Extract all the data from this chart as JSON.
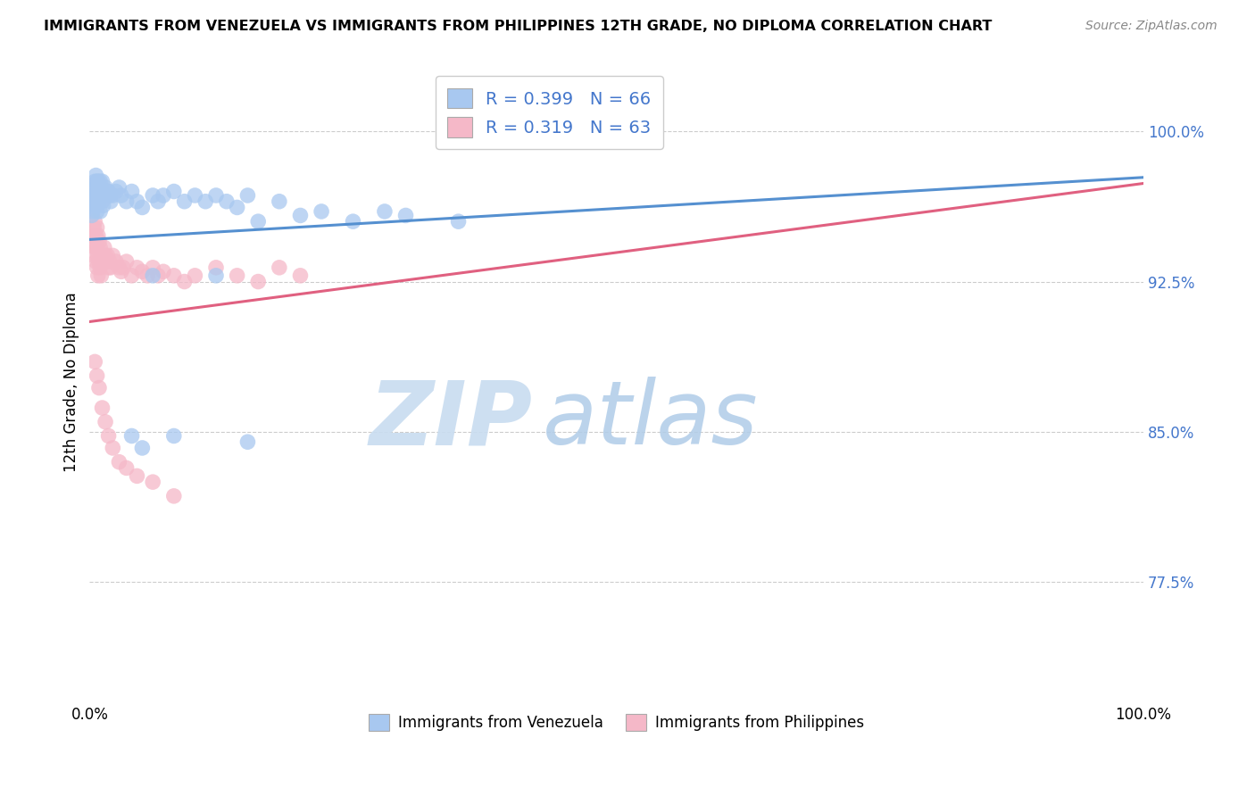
{
  "title": "IMMIGRANTS FROM VENEZUELA VS IMMIGRANTS FROM PHILIPPINES 12TH GRADE, NO DIPLOMA CORRELATION CHART",
  "source": "Source: ZipAtlas.com",
  "ylabel": "12th Grade, No Diploma",
  "yticks": [
    "100.0%",
    "92.5%",
    "85.0%",
    "77.5%"
  ],
  "ytick_vals": [
    1.0,
    0.925,
    0.85,
    0.775
  ],
  "xlim": [
    0.0,
    1.0
  ],
  "ylim": [
    0.715,
    1.035
  ],
  "legend_label1": "Immigrants from Venezuela",
  "legend_label2": "Immigrants from Philippines",
  "R1": "0.399",
  "N1": "66",
  "R2": "0.319",
  "N2": "63",
  "color1": "#A8C8F0",
  "color2": "#F5B8C8",
  "color1_dark": "#5590D0",
  "color2_dark": "#E06080",
  "blue_text": "#4477CC",
  "watermark_zip_color": "#C8DCF0",
  "watermark_atlas_color": "#B0CCE8",
  "trend1_y0": 0.946,
  "trend1_y1": 0.977,
  "trend2_y0": 0.905,
  "trend2_y1": 0.974,
  "venezuela_x": [
    0.002,
    0.003,
    0.003,
    0.004,
    0.004,
    0.005,
    0.005,
    0.005,
    0.006,
    0.006,
    0.006,
    0.007,
    0.007,
    0.007,
    0.008,
    0.008,
    0.009,
    0.009,
    0.01,
    0.01,
    0.01,
    0.011,
    0.012,
    0.012,
    0.013,
    0.013,
    0.014,
    0.015,
    0.016,
    0.017,
    0.018,
    0.019,
    0.02,
    0.022,
    0.025,
    0.028,
    0.03,
    0.035,
    0.04,
    0.045,
    0.05,
    0.06,
    0.065,
    0.07,
    0.08,
    0.09,
    0.1,
    0.11,
    0.12,
    0.13,
    0.14,
    0.15,
    0.16,
    0.18,
    0.2,
    0.22,
    0.25,
    0.28,
    0.3,
    0.35,
    0.04,
    0.05,
    0.06,
    0.08,
    0.12,
    0.15
  ],
  "venezuela_y": [
    0.958,
    0.96,
    0.968,
    0.965,
    0.972,
    0.975,
    0.97,
    0.963,
    0.978,
    0.972,
    0.965,
    0.975,
    0.968,
    0.96,
    0.975,
    0.968,
    0.972,
    0.965,
    0.975,
    0.968,
    0.96,
    0.97,
    0.975,
    0.965,
    0.97,
    0.963,
    0.968,
    0.972,
    0.968,
    0.97,
    0.97,
    0.968,
    0.965,
    0.968,
    0.97,
    0.972,
    0.968,
    0.965,
    0.97,
    0.965,
    0.962,
    0.968,
    0.965,
    0.968,
    0.97,
    0.965,
    0.968,
    0.965,
    0.968,
    0.965,
    0.962,
    0.968,
    0.955,
    0.965,
    0.958,
    0.96,
    0.955,
    0.96,
    0.958,
    0.955,
    0.848,
    0.842,
    0.928,
    0.848,
    0.928,
    0.845
  ],
  "philippines_x": [
    0.002,
    0.003,
    0.004,
    0.004,
    0.005,
    0.005,
    0.006,
    0.006,
    0.007,
    0.007,
    0.007,
    0.008,
    0.008,
    0.008,
    0.009,
    0.009,
    0.01,
    0.01,
    0.011,
    0.011,
    0.012,
    0.013,
    0.014,
    0.015,
    0.016,
    0.017,
    0.018,
    0.019,
    0.02,
    0.022,
    0.025,
    0.028,
    0.03,
    0.032,
    0.035,
    0.04,
    0.045,
    0.05,
    0.055,
    0.06,
    0.065,
    0.07,
    0.08,
    0.09,
    0.1,
    0.12,
    0.14,
    0.16,
    0.18,
    0.2,
    0.005,
    0.007,
    0.009,
    0.012,
    0.015,
    0.018,
    0.022,
    0.028,
    0.035,
    0.045,
    0.06,
    0.08,
    0.5
  ],
  "philippines_y": [
    0.948,
    0.945,
    0.952,
    0.938,
    0.955,
    0.942,
    0.948,
    0.935,
    0.952,
    0.942,
    0.932,
    0.948,
    0.938,
    0.928,
    0.945,
    0.935,
    0.942,
    0.932,
    0.938,
    0.928,
    0.938,
    0.935,
    0.942,
    0.938,
    0.935,
    0.938,
    0.932,
    0.935,
    0.932,
    0.938,
    0.935,
    0.932,
    0.93,
    0.932,
    0.935,
    0.928,
    0.932,
    0.93,
    0.928,
    0.932,
    0.928,
    0.93,
    0.928,
    0.925,
    0.928,
    0.932,
    0.928,
    0.925,
    0.932,
    0.928,
    0.885,
    0.878,
    0.872,
    0.862,
    0.855,
    0.848,
    0.842,
    0.835,
    0.832,
    0.828,
    0.825,
    0.818,
    0.998
  ]
}
